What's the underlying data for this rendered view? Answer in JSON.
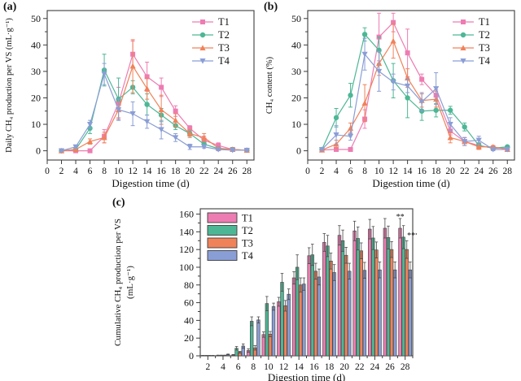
{
  "figure": {
    "background": "#ffffff",
    "panels": [
      {
        "letter": "(a)"
      },
      {
        "letter": "(b)"
      },
      {
        "letter": "(c)"
      }
    ]
  },
  "colors": {
    "T1": "#ed7cb2",
    "T2": "#4db795",
    "T3": "#f0825a",
    "T4": "#8a9ed6",
    "axis": "#3c3c3c",
    "bar_edge": "#4a4a4a",
    "error_dark": "#4a4a4a"
  },
  "chart_data": [
    {
      "id": "a",
      "type": "line",
      "title": "",
      "xlabel": "Digestion time (d)",
      "ylabel": "Daily CH₄ production per VS (mL·g⁻¹)",
      "xlim": [
        0,
        29
      ],
      "ylim": [
        -3.5,
        53
      ],
      "xticks": [
        0,
        2,
        4,
        6,
        8,
        10,
        12,
        14,
        16,
        18,
        20,
        22,
        24,
        26,
        28
      ],
      "yticks": [
        0,
        10,
        20,
        30,
        40,
        50
      ],
      "legend_position": "top-right",
      "x": [
        2,
        4,
        6,
        8,
        10,
        12,
        14,
        16,
        18,
        20,
        22,
        24,
        26,
        28
      ],
      "series": [
        {
          "name": "T1",
          "marker": "square",
          "values": [
            0,
            0,
            0,
            5.5,
            18,
            36.5,
            28,
            24,
            15,
            8.5,
            4,
            2,
            0.5,
            0.2
          ],
          "errors": [
            0.3,
            0.3,
            0.3,
            2.5,
            6,
            5,
            5.5,
            3.5,
            2,
            1,
            1.5,
            1,
            0.5,
            0.3
          ]
        },
        {
          "name": "T2",
          "marker": "circle",
          "values": [
            0,
            0.5,
            8.5,
            30.5,
            19.5,
            24,
            17.5,
            13.5,
            9.5,
            6.5,
            2.5,
            0.8,
            0.5,
            0.2
          ],
          "errors": [
            0.3,
            0.3,
            2,
            6,
            8,
            2.5,
            4,
            2.5,
            1.5,
            1,
            1,
            0.5,
            0.5,
            0.3
          ]
        },
        {
          "name": "T3",
          "marker": "triangle-up",
          "values": [
            0,
            0.5,
            3.5,
            5,
            15.5,
            32,
            23.5,
            15.5,
            11.5,
            6.5,
            5,
            1,
            0.5,
            0.2
          ],
          "errors": [
            0.3,
            0.3,
            1,
            2,
            3,
            10,
            4,
            5.5,
            2.5,
            1.5,
            1.5,
            0.5,
            0.5,
            0.3
          ]
        },
        {
          "name": "T4",
          "marker": "triangle-down",
          "values": [
            0,
            1.5,
            10,
            29,
            15.5,
            14,
            11,
            8,
            5,
            1.5,
            1.5,
            0.5,
            0.2,
            0.2
          ],
          "errors": [
            0.3,
            0.5,
            1.5,
            4,
            4,
            4.5,
            2.5,
            3.5,
            1.5,
            1,
            0.5,
            0.5,
            0.3,
            0.3
          ]
        }
      ]
    },
    {
      "id": "b",
      "type": "line",
      "title": "",
      "xlabel": "Digestion time (d)",
      "ylabel": "CH₄ content (%)",
      "xlim": [
        0,
        29
      ],
      "ylim": [
        -3.5,
        53
      ],
      "xticks": [
        0,
        2,
        4,
        6,
        8,
        10,
        12,
        14,
        16,
        18,
        20,
        22,
        24,
        26,
        28
      ],
      "yticks": [
        0,
        10,
        20,
        30,
        40,
        50
      ],
      "legend_position": "top-right",
      "x": [
        2,
        4,
        6,
        8,
        10,
        12,
        14,
        16,
        18,
        20,
        22,
        24,
        26,
        28
      ],
      "series": [
        {
          "name": "T1",
          "marker": "square",
          "values": [
            0.3,
            0.5,
            0.5,
            12,
            43,
            48.5,
            37,
            27,
            21,
            7.5,
            3.5,
            2,
            1,
            1
          ],
          "errors": [
            0.3,
            0.3,
            0.3,
            3.5,
            9,
            3.5,
            9,
            2,
            2,
            1.5,
            1.5,
            1,
            0.5,
            0.5
          ]
        },
        {
          "name": "T2",
          "marker": "circle",
          "values": [
            0.5,
            12.5,
            21,
            44,
            38,
            26.5,
            20,
            15,
            15.3,
            15.3,
            9,
            2,
            1,
            1.5
          ],
          "errors": [
            0.3,
            3.5,
            4.5,
            2.5,
            5,
            6.5,
            7.5,
            3.5,
            2.5,
            1.5,
            1.5,
            1,
            0.5,
            0.5
          ]
        },
        {
          "name": "T3",
          "marker": "triangle-up",
          "values": [
            0.3,
            2.5,
            8.5,
            18,
            33,
            41.5,
            27.5,
            19,
            19.5,
            5,
            3.5,
            1.5,
            1.5,
            0.5
          ],
          "errors": [
            0.3,
            1.5,
            2,
            7,
            4.5,
            6.5,
            3.5,
            2.5,
            3,
            2,
            1.5,
            1,
            0.5,
            0.5
          ]
        },
        {
          "name": "T4",
          "marker": "triangle-down",
          "values": [
            0.5,
            6,
            5.5,
            36.5,
            30,
            26,
            24.5,
            18.5,
            23.5,
            10,
            3.5,
            4,
            0.5,
            0.5
          ],
          "errors": [
            0.3,
            3.5,
            1.5,
            6,
            7.5,
            3,
            2.5,
            3.5,
            6,
            2.5,
            1.5,
            1.5,
            0.5,
            0.5
          ]
        }
      ]
    },
    {
      "id": "c",
      "type": "bar",
      "title": "",
      "xlabel": "Digestion time (d)",
      "ylabel_lines": [
        "Cumulative CH₄ production per VS",
        "(mL·g⁻¹)"
      ],
      "ylim": [
        0,
        166
      ],
      "yticks": [
        0,
        20,
        40,
        60,
        80,
        100,
        120,
        140,
        160
      ],
      "legend_position": "top-left",
      "categories": [
        2,
        4,
        6,
        8,
        10,
        12,
        14,
        16,
        18,
        20,
        22,
        24,
        26,
        28
      ],
      "series": [
        {
          "name": "T1",
          "values": [
            0.3,
            0.5,
            1,
            6,
            24,
            61,
            88,
            113,
            128,
            136,
            141,
            143,
            144,
            144
          ],
          "errors": [
            0.2,
            0.3,
            0.5,
            2,
            3,
            5,
            7,
            9,
            10,
            11,
            11,
            11,
            11,
            11
          ]
        },
        {
          "name": "T2",
          "values": [
            0.3,
            0.5,
            8.5,
            39,
            59,
            83,
            100,
            114,
            124,
            130,
            132.5,
            133,
            133.5,
            134
          ],
          "errors": [
            0.2,
            0.3,
            2,
            5,
            8,
            10,
            14,
            12,
            12,
            12,
            13,
            13,
            13,
            13
          ]
        },
        {
          "name": "T3",
          "values": [
            0.3,
            0.5,
            4,
            9,
            24.5,
            56.5,
            80,
            95.5,
            107,
            113.5,
            118.5,
            119.5,
            120,
            120
          ],
          "errors": [
            0.2,
            0.3,
            1,
            2.5,
            3,
            6,
            8,
            9,
            9,
            9,
            9,
            9,
            9,
            10
          ]
        },
        {
          "name": "T4",
          "values": [
            0.3,
            1.5,
            11,
            40.5,
            55.5,
            69.5,
            81,
            89,
            94,
            95.5,
            96.5,
            97,
            97,
            97
          ],
          "errors": [
            0.2,
            0.5,
            2.5,
            3.5,
            4,
            6,
            7,
            9,
            9,
            9,
            9,
            9,
            9,
            9
          ]
        }
      ],
      "annotations": [
        {
          "text": "**",
          "day": 28,
          "dx": -6,
          "y": 154
        },
        {
          "text": "***",
          "day": 28,
          "dx": 10,
          "y": 133
        }
      ]
    }
  ]
}
